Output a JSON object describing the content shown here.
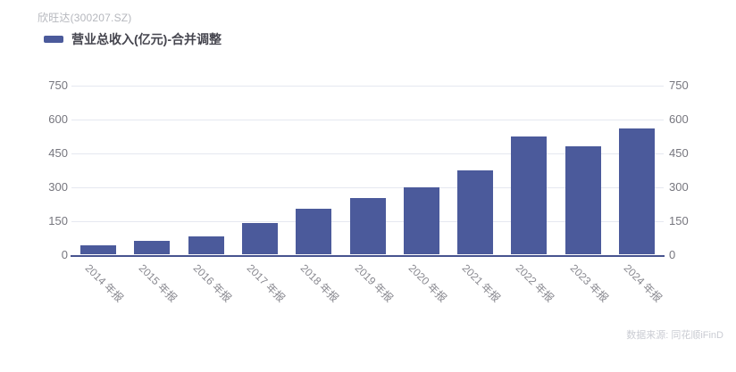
{
  "header": {
    "title": "欣旺达(300207.SZ)"
  },
  "legend": {
    "label": "营业总收入(亿元)-合并调整",
    "marker_color": "#4b5a9b"
  },
  "chart_data": {
    "type": "bar",
    "title": "欣旺达(300207.SZ)",
    "series_name": "营业总收入(亿元)-合并调整",
    "unit": "亿元",
    "categories": [
      "2014 年报",
      "2015 年报",
      "2016 年报",
      "2017 年报",
      "2018 年报",
      "2019 年报",
      "2020 年报",
      "2021 年报",
      "2022 年报",
      "2023 年报",
      "2024 年报"
    ],
    "values": [
      42,
      62,
      80,
      140,
      203,
      252,
      297,
      374,
      522,
      479,
      560
    ],
    "ylim": [
      0,
      750
    ],
    "yticks": [
      0,
      150,
      300,
      450,
      600,
      750
    ],
    "grid": true,
    "y_axis_sides": "both",
    "bar_color": "#4b5a9b",
    "axis_line_color": "#47538f",
    "gridline_color": "#e5e8f0",
    "legend_position": "top-left"
  },
  "footer": {
    "source": "数据来源: 同花顺iFinD"
  }
}
